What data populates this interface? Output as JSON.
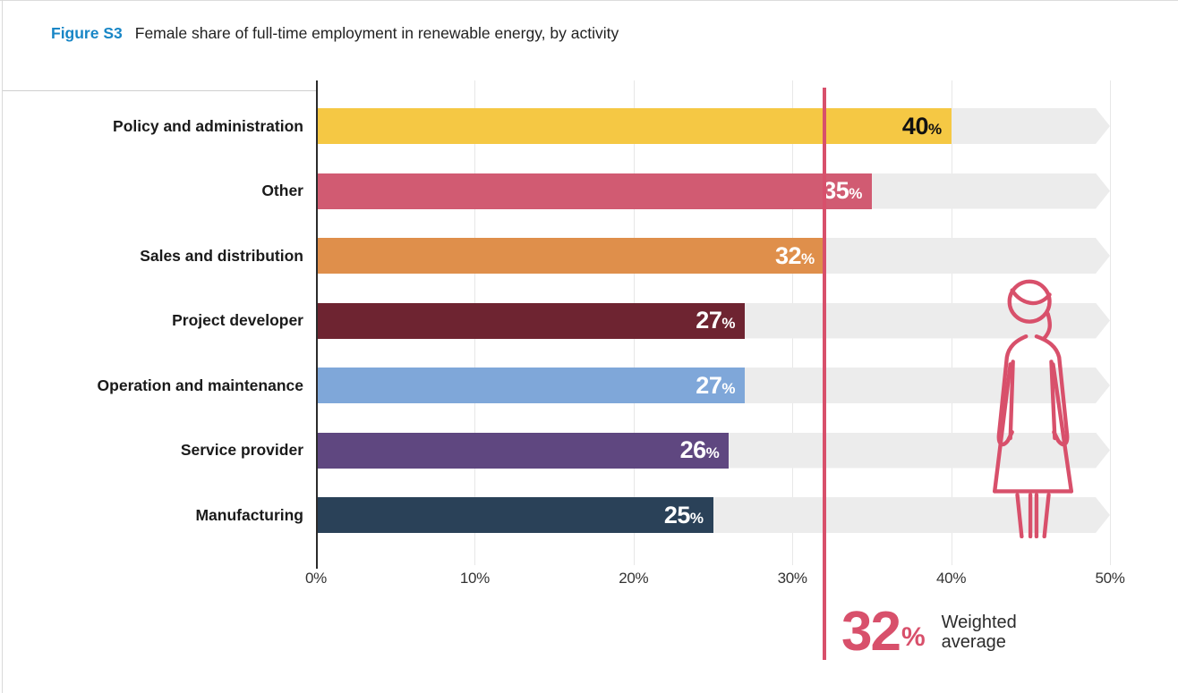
{
  "figure": {
    "label": "Figure S3",
    "label_color": "#1886c6",
    "title": "Female share of full-time employment in renewable energy, by activity"
  },
  "chart_data": {
    "type": "bar",
    "orientation": "horizontal",
    "title": "Female share of full-time employment in renewable energy, by activity",
    "unit": "%",
    "xlim": [
      0,
      50
    ],
    "grid": true,
    "track_color": "#ececec",
    "x_ticks": [
      {
        "value": 0,
        "label": "0%"
      },
      {
        "value": 10,
        "label": "10%"
      },
      {
        "value": 20,
        "label": "20%"
      },
      {
        "value": 30,
        "label": "30%"
      },
      {
        "value": 40,
        "label": "40%"
      },
      {
        "value": 50,
        "label": "50%"
      }
    ],
    "bars": [
      {
        "category": "Policy and administration",
        "value": 40,
        "display": "40",
        "color": "#f5c844",
        "value_label_color": "#111111"
      },
      {
        "category": "Other",
        "value": 35,
        "display": "35",
        "color": "#d15b72",
        "value_label_color": "#ffffff"
      },
      {
        "category": "Sales and distribution",
        "value": 32,
        "display": "32",
        "color": "#df8f4b",
        "value_label_color": "#ffffff"
      },
      {
        "category": "Project developer",
        "value": 27,
        "display": "27",
        "color": "#6e2431",
        "value_label_color": "#ffffff"
      },
      {
        "category": "Operation and maintenance",
        "value": 27,
        "display": "27",
        "color": "#7fa7d9",
        "value_label_color": "#ffffff"
      },
      {
        "category": "Service provider",
        "value": 26,
        "display": "26",
        "color": "#5f4780",
        "value_label_color": "#ffffff"
      },
      {
        "category": "Manufacturing",
        "value": 25,
        "display": "25",
        "color": "#2a4158",
        "value_label_color": "#ffffff"
      }
    ],
    "reference_line": {
      "value": 32,
      "color": "#d8506b",
      "big_number": "32",
      "unit": "%",
      "caption_line1": "Weighted",
      "caption_line2": "average"
    },
    "icons": {
      "woman_figure": "woman-outline-icon",
      "woman_figure_color": "#d8506b"
    }
  }
}
